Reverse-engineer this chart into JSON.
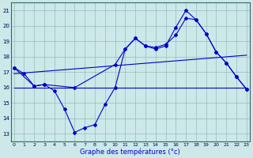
{
  "xlabel": "Graphe des températures (°c)",
  "bg_color": "#cce8e8",
  "grid_color": "#99bbbb",
  "line_color": "#0000cc",
  "x_ticks": [
    0,
    1,
    2,
    3,
    4,
    5,
    6,
    7,
    8,
    9,
    10,
    11,
    12,
    13,
    14,
    15,
    16,
    17,
    18,
    19,
    20,
    21,
    22,
    23
  ],
  "y_ticks": [
    13,
    14,
    15,
    16,
    17,
    18,
    19,
    20,
    21
  ],
  "ylim": [
    12.5,
    21.5
  ],
  "xlim": [
    -0.3,
    23.3
  ],
  "line1_min": {
    "x": [
      0,
      1,
      2,
      3,
      4,
      5,
      6,
      7,
      8,
      9,
      10,
      11,
      12,
      13,
      14,
      15,
      16,
      17,
      18,
      19,
      20,
      21,
      22,
      23
    ],
    "y": [
      17.3,
      16.9,
      16.1,
      16.2,
      15.8,
      14.6,
      13.1,
      13.4,
      13.6,
      14.9,
      16.0,
      18.5,
      19.2,
      18.7,
      18.5,
      18.7,
      19.9,
      21.0,
      20.4,
      19.5,
      18.3,
      17.6,
      16.7,
      15.9
    ]
  },
  "line2_max": {
    "x": [
      0,
      2,
      3,
      6,
      10,
      11,
      12,
      13,
      14,
      15,
      16,
      17,
      18,
      19,
      20,
      21,
      22,
      23
    ],
    "y": [
      17.3,
      16.1,
      16.2,
      16.0,
      17.5,
      18.5,
      19.2,
      18.7,
      18.6,
      18.8,
      19.4,
      20.5,
      20.4,
      19.5,
      18.3,
      17.6,
      16.7,
      15.9
    ]
  },
  "line3_flat": {
    "x": [
      0,
      23
    ],
    "y": [
      16.0,
      16.0
    ]
  },
  "line4_trend": {
    "x": [
      0,
      23
    ],
    "y": [
      16.9,
      18.1
    ]
  }
}
